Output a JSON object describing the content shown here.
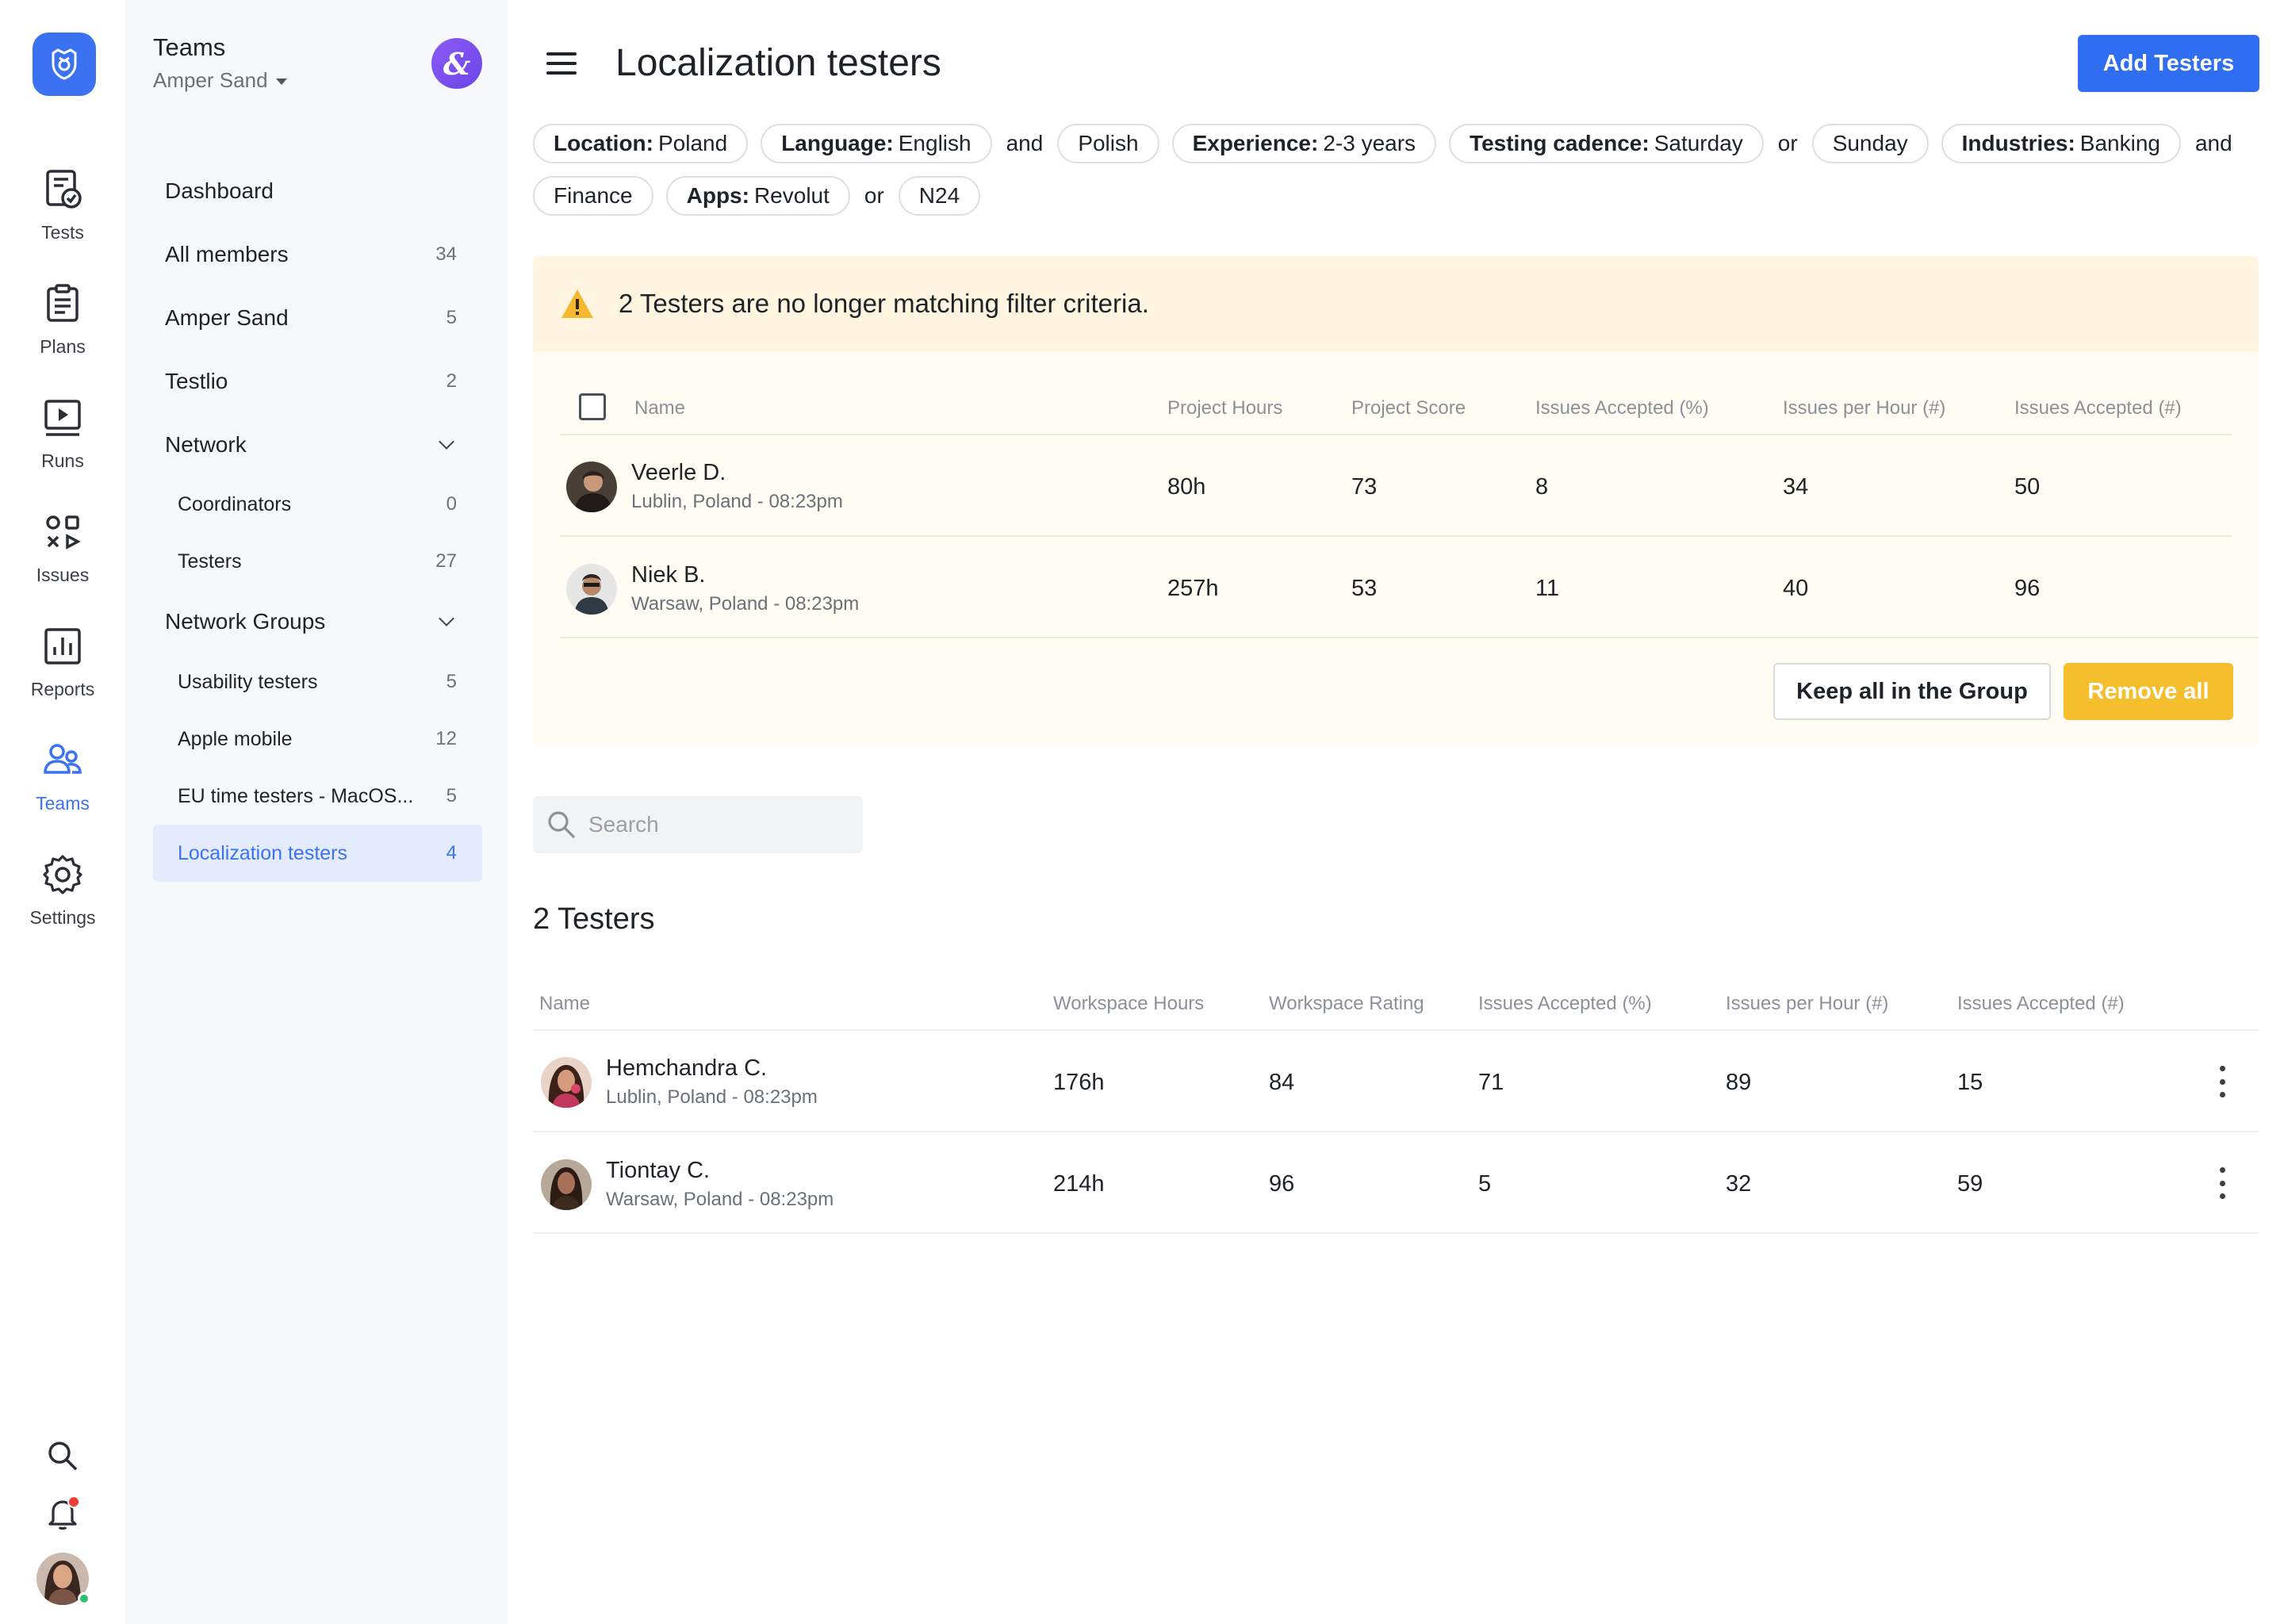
{
  "rail": {
    "items": [
      {
        "label": "Tests",
        "icon": "tests-icon"
      },
      {
        "label": "Plans",
        "icon": "plans-icon"
      },
      {
        "label": "Runs",
        "icon": "runs-icon"
      },
      {
        "label": "Issues",
        "icon": "issues-icon"
      },
      {
        "label": "Reports",
        "icon": "reports-icon"
      },
      {
        "label": "Teams",
        "icon": "teams-icon",
        "active": true
      },
      {
        "label": "Settings",
        "icon": "settings-icon"
      }
    ]
  },
  "sidebar": {
    "title": "Teams",
    "org": "Amper Sand",
    "items": [
      {
        "label": "Dashboard",
        "count": ""
      },
      {
        "label": "All members",
        "count": "34"
      },
      {
        "label": "Amper Sand",
        "count": "5"
      },
      {
        "label": "Testlio",
        "count": "2"
      },
      {
        "label": "Network",
        "count": ""
      },
      {
        "label": "Coordinators",
        "count": "0"
      },
      {
        "label": "Testers",
        "count": "27"
      },
      {
        "label": "Network Groups",
        "count": ""
      },
      {
        "label": "Usability testers",
        "count": "5"
      },
      {
        "label": "Apple mobile",
        "count": "12"
      },
      {
        "label": "EU time testers - MacOS...",
        "count": "5"
      },
      {
        "label": "Localization testers",
        "count": "4"
      }
    ]
  },
  "header": {
    "title": "Localization testers",
    "add_button": "Add Testers"
  },
  "filters": {
    "location_key": "Location:",
    "location_val": "Poland",
    "language_key": "Language:",
    "language_val": "English",
    "and1": "and",
    "polish": "Polish",
    "experience_key": "Experience:",
    "experience_val": "2-3 years",
    "cadence_key": "Testing cadence:",
    "cadence_val": "Saturday",
    "or1": "or",
    "sunday": "Sunday",
    "industries_key": "Industries:",
    "industries_val": "Banking",
    "and2": "and",
    "finance": "Finance",
    "apps_key": "Apps:",
    "apps_val": "Revolut",
    "or2": "or",
    "n24": "N24"
  },
  "warning": {
    "message": "2 Testers are no longer matching filter criteria.",
    "columns": [
      "Name",
      "Project Hours",
      "Project Score",
      "Issues Accepted (%)",
      "Issues per Hour (#)",
      "Issues Accepted (#)"
    ],
    "rows": [
      {
        "name": "Veerle D.",
        "location": "Lublin, Poland - 08:23pm",
        "hours": "80h",
        "score": "73",
        "acc_pct": "8",
        "per_hour": "34",
        "acc_num": "50"
      },
      {
        "name": "Niek B.",
        "location": "Warsaw, Poland - 08:23pm",
        "hours": "257h",
        "score": "53",
        "acc_pct": "11",
        "per_hour": "40",
        "acc_num": "96"
      }
    ],
    "keep_button": "Keep all in the Group",
    "remove_button": "Remove all"
  },
  "search": {
    "placeholder": "Search"
  },
  "testers": {
    "title": "2 Testers",
    "columns": [
      "Name",
      "Workspace Hours",
      "Workspace Rating",
      "Issues Accepted (%)",
      "Issues per Hour (#)",
      "Issues Accepted (#)"
    ],
    "rows": [
      {
        "name": "Hemchandra C.",
        "location": "Lublin, Poland - 08:23pm",
        "hours": "176h",
        "rating": "84",
        "acc_pct": "71",
        "per_hour": "89",
        "acc_num": "15"
      },
      {
        "name": "Tiontay C.",
        "location": "Warsaw, Poland - 08:23pm",
        "hours": "214h",
        "rating": "96",
        "acc_pct": "5",
        "per_hour": "32",
        "acc_num": "59"
      }
    ]
  },
  "colors": {
    "accent": "#2f6ef0",
    "warning": "#f5be2d",
    "warning_bg": "#fff5e0",
    "active_nav_bg": "#e3ebfd"
  }
}
